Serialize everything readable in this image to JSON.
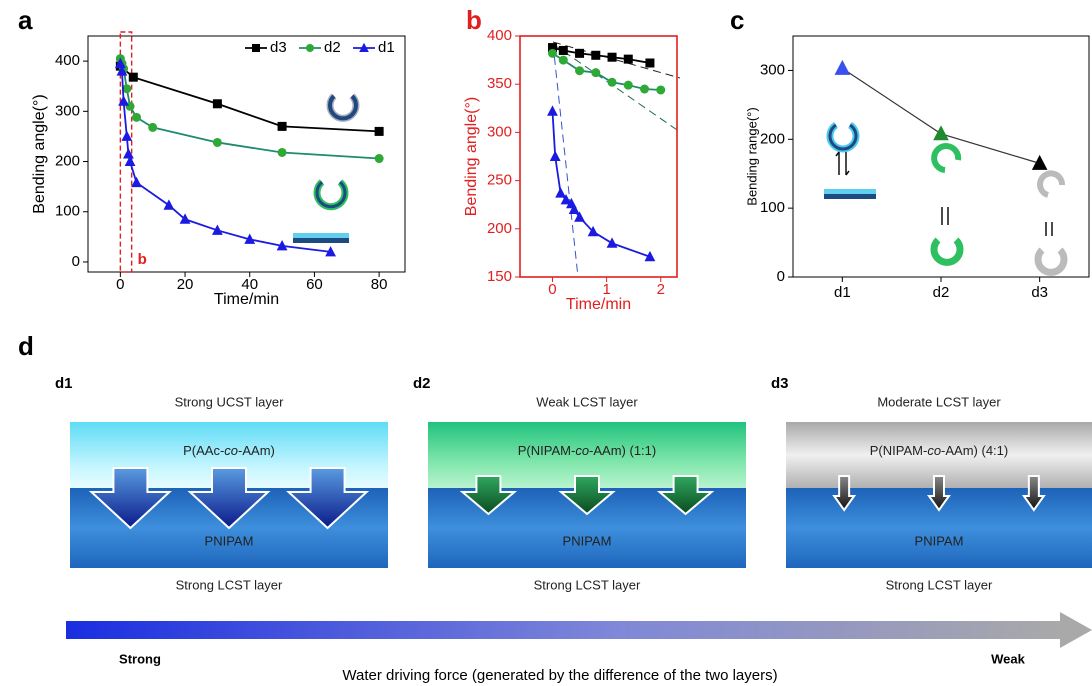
{
  "chart_data": [
    {
      "type": "line",
      "label": "a",
      "x_label": "Time/min",
      "y_label": "Bending angle(°)",
      "axis_color": "#000000",
      "xlim": [
        -10,
        88
      ],
      "xticks": [
        0,
        20,
        40,
        60,
        80
      ],
      "ylim": [
        -20,
        450
      ],
      "yticks": [
        0,
        100,
        200,
        300,
        400
      ],
      "legend": "top-right",
      "annotation": {
        "label": "b",
        "xrange": [
          0,
          3.5
        ],
        "color": "#e02020"
      },
      "series": [
        {
          "name": "d3",
          "color": "#000000",
          "marker": "square",
          "x": [
            0,
            4,
            30,
            50,
            80
          ],
          "values": [
            390,
            368,
            315,
            270,
            260
          ]
        },
        {
          "name": "d2",
          "color": "#1e8a6e",
          "marker_color": "#2ea836",
          "marker": "circle",
          "x": [
            0,
            0.5,
            1,
            2,
            3,
            5,
            10,
            30,
            50,
            80
          ],
          "values": [
            405,
            395,
            385,
            345,
            310,
            288,
            268,
            238,
            218,
            206
          ]
        },
        {
          "name": "d1",
          "color": "#1a1ae0",
          "marker": "triangle",
          "x": [
            0,
            0.5,
            1,
            2,
            2.5,
            3,
            5,
            15,
            20,
            30,
            40,
            50,
            65
          ],
          "values": [
            395,
            380,
            320,
            250,
            215,
            200,
            158,
            113,
            85,
            63,
            45,
            32,
            20
          ]
        }
      ]
    },
    {
      "type": "line",
      "label": "b",
      "x_label": "Time/min",
      "y_label": "Bending angle(°)",
      "axis_color": "#e02020",
      "xlim": [
        -0.6,
        2.3
      ],
      "xticks": [
        0,
        1,
        2
      ],
      "ylim": [
        150,
        400
      ],
      "yticks": [
        150,
        200,
        250,
        300,
        350,
        400
      ],
      "series": [
        {
          "name": "d3",
          "color": "#000000",
          "marker": "square",
          "x": [
            0,
            0.2,
            0.5,
            0.8,
            1.1,
            1.4,
            1.8
          ],
          "values": [
            388,
            385,
            382,
            380,
            378,
            376,
            372
          ]
        },
        {
          "name": "d2",
          "color": "#1e8a6e",
          "marker_color": "#2ea836",
          "marker": "circle",
          "x": [
            0,
            0.2,
            0.5,
            0.8,
            1.1,
            1.4,
            1.7,
            2.0
          ],
          "values": [
            382,
            375,
            364,
            362,
            352,
            349,
            345,
            344
          ]
        },
        {
          "name": "d1",
          "color": "#1a1ae0",
          "marker": "triangle",
          "x": [
            0,
            0.05,
            0.15,
            0.25,
            0.35,
            0.4,
            0.5,
            0.75,
            1.1,
            1.8
          ],
          "values": [
            322,
            275,
            237,
            230,
            226,
            220,
            212,
            197,
            185,
            171
          ]
        }
      ]
    },
    {
      "type": "line",
      "label": "c",
      "y_label": "Bending range(°)",
      "axis_color": "#000000",
      "categories": [
        "d1",
        "d2",
        "d3"
      ],
      "values": [
        303,
        208,
        165
      ],
      "point_colors": [
        "#3a4ff0",
        "#1e8a2e",
        "#000000"
      ],
      "marker": "triangle",
      "line_color": "#333333",
      "ylim": [
        0,
        350
      ],
      "yticks": [
        0,
        100,
        200,
        300
      ]
    }
  ],
  "panel_d": {
    "label": "d",
    "blocks": [
      {
        "name": "d1",
        "top_label": "Strong UCST layer",
        "upper_layer": [
          "P(AAc-",
          "co",
          "-AAm)"
        ],
        "lower_layer": "PNIPAM",
        "bottom_label": "Strong LCST layer"
      },
      {
        "name": "d2",
        "top_label": "Weak LCST layer",
        "upper_layer": [
          "P(NIPAM-",
          "co",
          "-AAm) (1:1)"
        ],
        "lower_layer": "PNIPAM",
        "bottom_label": "Strong LCST layer"
      },
      {
        "name": "d3",
        "top_label": "Moderate LCST layer",
        "upper_layer": [
          "P(NIPAM-",
          "co",
          "-AAm) (4:1)"
        ],
        "lower_layer": "PNIPAM",
        "bottom_label": "Strong LCST layer"
      }
    ],
    "scale": {
      "start": "Strong",
      "end": "Weak",
      "caption": "Water driving force  (generated by the difference of the two layers)"
    }
  }
}
